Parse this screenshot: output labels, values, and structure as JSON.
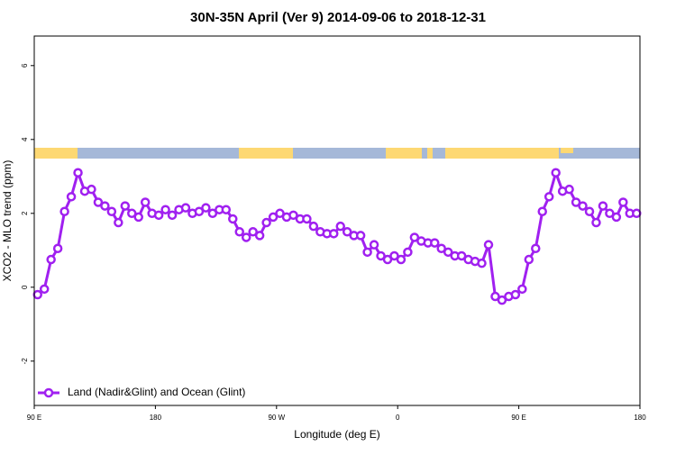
{
  "chart_data": {
    "type": "line",
    "title": "30N-35N April (Ver 9)   2014-09-06 to 2018-12-31",
    "x_label": "Longitude (deg E)",
    "y_label": "XCO2 - MLO trend (ppm)",
    "x": [
      92.5,
      97.5,
      102.5,
      107.5,
      112.5,
      117.5,
      122.5,
      127.5,
      132.5,
      137.5,
      142.5,
      147.5,
      152.5,
      157.5,
      162.5,
      167.5,
      172.5,
      177.5,
      182.5,
      187.5,
      192.5,
      197.5,
      202.5,
      207.5,
      212.5,
      217.5,
      222.5,
      227.5,
      232.5,
      237.5,
      242.5,
      247.5,
      252.5,
      257.5,
      262.5,
      267.5,
      272.5,
      277.5,
      282.5,
      287.5,
      292.5,
      297.5,
      302.5,
      307.5,
      312.5,
      317.5,
      322.5,
      327.5,
      332.5,
      337.5,
      342.5,
      347.5,
      352.5,
      357.5,
      362.5,
      367.5,
      372.5,
      377.5,
      382.5,
      387.5,
      392.5,
      397.5,
      402.5,
      407.5,
      412.5,
      417.5,
      422.5,
      427.5,
      432.5,
      437.5,
      442.5,
      447.5,
      452.5,
      457.5,
      462.5,
      467.5,
      472.5,
      477.5,
      482.5,
      487.5,
      492.5,
      497.5,
      502.5,
      507.5,
      512.5,
      517.5,
      522.5,
      527.5,
      532.5,
      537.5
    ],
    "series": [
      {
        "name": "Land (Nadir&Glint) and Ocean (Glint)",
        "color": "#a020f0",
        "values": [
          -0.2,
          -0.05,
          0.75,
          1.05,
          2.05,
          2.45,
          3.1,
          2.6,
          2.65,
          2.3,
          2.2,
          2.05,
          1.75,
          2.2,
          2.0,
          1.9,
          2.3,
          2.0,
          1.95,
          2.1,
          1.95,
          2.1,
          2.15,
          2.0,
          2.05,
          2.15,
          2.0,
          2.1,
          2.1,
          1.85,
          1.5,
          1.35,
          1.5,
          1.4,
          1.75,
          1.9,
          2.0,
          1.9,
          1.95,
          1.85,
          1.85,
          1.65,
          1.5,
          1.45,
          1.45,
          1.65,
          1.5,
          1.4,
          1.4,
          0.95,
          1.15,
          0.85,
          0.75,
          0.85,
          0.75,
          0.95,
          1.35,
          1.25,
          1.2,
          1.2,
          1.05,
          0.95,
          0.85,
          0.85,
          0.75,
          0.7,
          0.65,
          1.15,
          -0.25,
          -0.35,
          -0.25,
          -0.2,
          -0.05,
          0.75,
          1.05,
          2.05,
          2.45,
          3.1,
          2.6,
          2.65,
          2.3,
          2.2,
          2.05,
          1.75,
          2.2,
          2.0,
          1.9,
          2.3,
          2.0,
          2.0
        ]
      }
    ],
    "xlim": [
      90,
      540
    ],
    "xticks": [
      {
        "value": 90,
        "label": "90 E"
      },
      180,
      {
        "value": 270,
        "label": "90 W"
      },
      {
        "value": 360,
        "label": "0"
      },
      {
        "value": 450,
        "label": "90 E"
      },
      {
        "value": 540,
        "label": "180"
      }
    ],
    "ylim": [
      -3.2,
      6.8
    ],
    "yticks": [
      -2,
      0,
      2,
      4,
      6
    ],
    "legend": "bottomleft"
  }
}
